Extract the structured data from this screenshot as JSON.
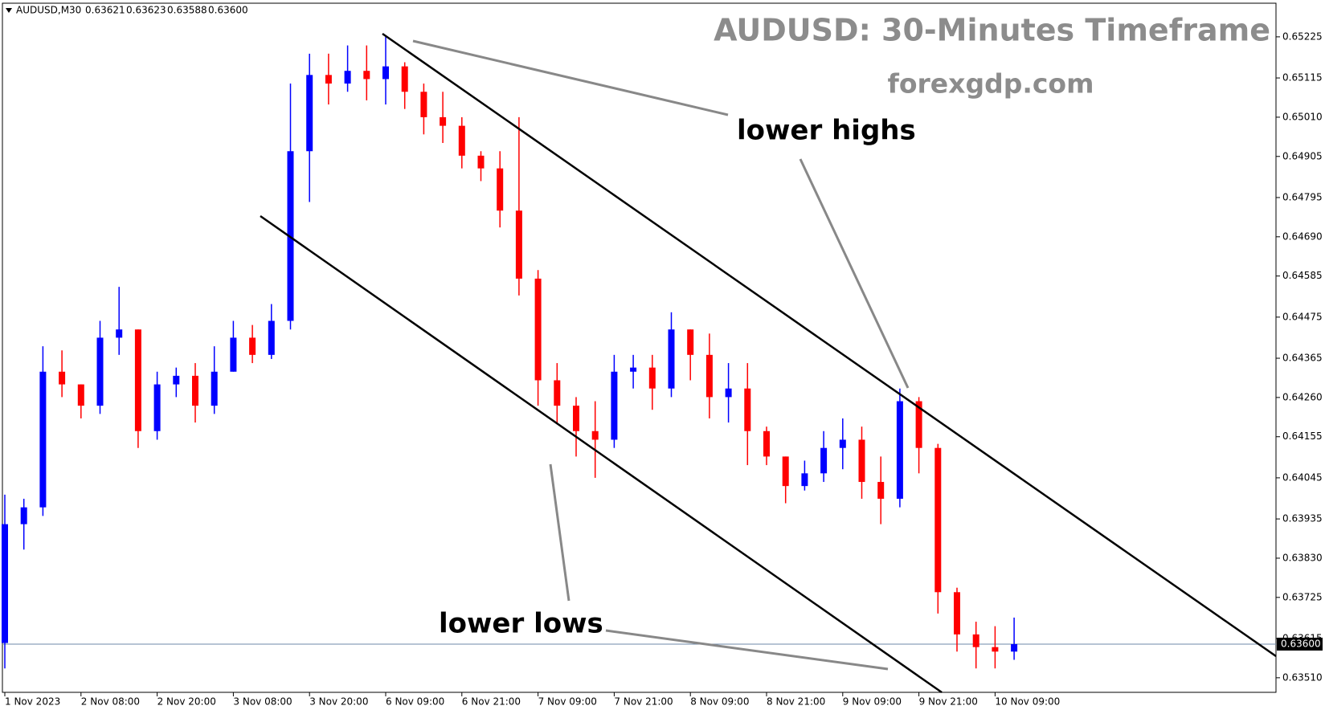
{
  "header": {
    "symbol": "AUDUSD,M30",
    "quote": [
      "0.63621",
      "0.63623",
      "0.63588",
      "0.63600"
    ]
  },
  "chart_data": {
    "type": "candlestick",
    "title": "AUDUSD: 30-Minutes Timeframe",
    "subtitle": "forexgdp.com",
    "annotations": [
      "lower highs",
      "lower lows"
    ],
    "up_color": "#0000ff",
    "down_color": "#ff0000",
    "categories": [
      "1 Nov 2023",
      null,
      null,
      null,
      "2 Nov 08:00",
      null,
      null,
      null,
      "2 Nov 20:00",
      null,
      null,
      null,
      "3 Nov 08:00",
      null,
      null,
      null,
      "3 Nov 20:00",
      null,
      null,
      null,
      "6 Nov 09:00",
      null,
      null,
      null,
      "6 Nov 21:00",
      null,
      null,
      null,
      "7 Nov 09:00",
      null,
      null,
      null,
      "7 Nov 21:00",
      null,
      null,
      null,
      "8 Nov 09:00",
      null,
      null,
      null,
      "8 Nov 21:00",
      null,
      null,
      null,
      "9 Nov 09:00",
      null,
      null,
      null,
      "9 Nov 21:00",
      null,
      null,
      null,
      "10 Nov 09:00",
      null
    ],
    "open": [
      0.63603,
      0.63921,
      0.63966,
      0.64329,
      0.64295,
      0.64238,
      0.6442,
      0.64442,
      0.6417,
      0.64295,
      0.64318,
      0.64238,
      0.64329,
      0.6442,
      0.64374,
      0.64465,
      0.64919,
      0.65123,
      0.651,
      0.65134,
      0.65112,
      0.65146,
      0.65078,
      0.6501,
      0.64987,
      0.64907,
      0.64873,
      0.6476,
      0.64578,
      0.64306,
      0.64238,
      0.6417,
      0.64147,
      0.64329,
      0.6434,
      0.64284,
      0.64442,
      0.64374,
      0.64261,
      0.64284,
      0.6417,
      0.64102,
      0.64023,
      0.64057,
      0.64125,
      0.64147,
      0.64034,
      0.63989,
      0.6425,
      0.64125,
      0.63739,
      0.63626,
      0.63592,
      0.6358
    ],
    "high": [
      0.64,
      0.63989,
      0.64397,
      0.64386,
      0.64295,
      0.64465,
      0.64556,
      0.64442,
      0.64329,
      0.6434,
      0.64352,
      0.64397,
      0.64465,
      0.64454,
      0.6451,
      0.651,
      0.6518,
      0.6518,
      0.65202,
      0.65202,
      0.65225,
      0.65157,
      0.651,
      0.65078,
      0.6501,
      0.64919,
      0.64919,
      0.6501,
      0.64601,
      0.64352,
      0.64261,
      0.6425,
      0.64374,
      0.64374,
      0.64374,
      0.64488,
      0.64442,
      0.64431,
      0.64352,
      0.64352,
      0.64182,
      0.64102,
      0.64091,
      0.6417,
      0.64204,
      0.64182,
      0.64102,
      0.64284,
      0.64261,
      0.64136,
      0.63751,
      0.6366,
      0.63648,
      0.63671
    ],
    "low": [
      0.63535,
      0.63853,
      0.63943,
      0.64261,
      0.64204,
      0.64216,
      0.64374,
      0.64125,
      0.64147,
      0.64261,
      0.64193,
      0.64216,
      0.64329,
      0.64352,
      0.64363,
      0.64442,
      0.64783,
      0.65044,
      0.65078,
      0.65055,
      0.65044,
      0.65032,
      0.64964,
      0.64941,
      0.64873,
      0.64839,
      0.64715,
      0.64533,
      0.64238,
      0.64193,
      0.64102,
      0.64045,
      0.64125,
      0.64284,
      0.64227,
      0.64261,
      0.64306,
      0.64204,
      0.64193,
      0.64079,
      0.64079,
      0.63977,
      0.64011,
      0.64034,
      0.64068,
      0.63989,
      0.63921,
      0.63966,
      0.64057,
      0.63682,
      0.6358,
      0.63535,
      0.63535,
      0.63558
    ],
    "close": [
      0.63921,
      0.63966,
      0.64329,
      0.64295,
      0.64238,
      0.6442,
      0.64442,
      0.6417,
      0.64295,
      0.64318,
      0.64238,
      0.64329,
      0.6442,
      0.64374,
      0.64465,
      0.64919,
      0.65123,
      0.651,
      0.65134,
      0.65112,
      0.65146,
      0.65078,
      0.6501,
      0.64987,
      0.64907,
      0.64873,
      0.6476,
      0.64578,
      0.64306,
      0.64238,
      0.6417,
      0.64147,
      0.64329,
      0.6434,
      0.64284,
      0.64442,
      0.64374,
      0.64261,
      0.64284,
      0.6417,
      0.64102,
      0.64023,
      0.64057,
      0.64125,
      0.64147,
      0.64034,
      0.63989,
      0.6425,
      0.64125,
      0.63739,
      0.63626,
      0.63592,
      0.6358,
      0.636
    ],
    "current_price": {
      "value": 0.636,
      "label": "0.63600"
    },
    "ylim": [
      0.63471,
      0.65315
    ],
    "yticks": [
      0.65225,
      0.65115,
      {
        "value": 0.6501,
        "label": "0.65010"
      },
      0.64905,
      0.64795,
      {
        "value": 0.6469,
        "label": "0.64690"
      },
      0.64585,
      0.64475,
      0.64365,
      {
        "value": 0.6426,
        "label": "0.64260"
      },
      0.64155,
      0.64045,
      0.63935,
      {
        "value": 0.6383,
        "label": "0.63830"
      },
      0.63725,
      0.63615,
      {
        "value": 0.6351,
        "label": "0.63510"
      }
    ]
  }
}
